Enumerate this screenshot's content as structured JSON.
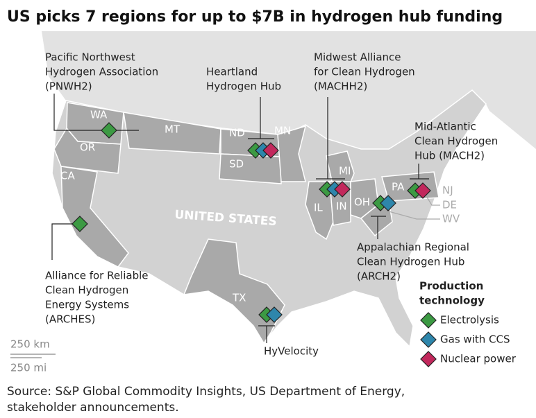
{
  "title": "US picks 7 regions for up to $7B in hydrogen hub funding",
  "country_label": "UNITED STATES",
  "state_labels": [
    "WA",
    "OR",
    "CA",
    "MT",
    "ND",
    "SD",
    "MN",
    "MI",
    "IL",
    "IN",
    "OH",
    "PA",
    "TX",
    "NJ",
    "DE",
    "WV"
  ],
  "hubs": [
    {
      "label": [
        "Pacific Northwest",
        "Hydrogen Association",
        "(PNWH2)"
      ],
      "colors": [
        "#3c9a43"
      ]
    },
    {
      "label": [
        "Heartland",
        "Hydrogen Hub"
      ],
      "colors": [
        "#3c9a43",
        "#2e86ab",
        "#c2285c"
      ]
    },
    {
      "label": [
        "Midwest Alliance",
        "for Clean Hydrogen",
        "(MACHH2)"
      ],
      "colors": [
        "#3c9a43",
        "#2e86ab",
        "#c2285c"
      ]
    },
    {
      "label": [
        "Mid-Atlantic",
        "Clean Hydrogen",
        "Hub (MACH2)"
      ],
      "colors": [
        "#3c9a43",
        "#c2285c"
      ]
    },
    {
      "label": [
        "Appalachian Regional",
        "Clean Hydrogen Hub",
        "(ARCH2)"
      ],
      "colors": [
        "#3c9a43",
        "#2e86ab"
      ]
    },
    {
      "label": [
        "Alliance for Reliable",
        "Clean Hydrogen",
        "Energy Systems",
        "(ARCHES)"
      ],
      "colors": [
        "#3c9a43"
      ]
    },
    {
      "label": [
        "HyVelocity"
      ],
      "colors": [
        "#3c9a43",
        "#2e86ab"
      ]
    }
  ],
  "legend": {
    "title": [
      "Production",
      "technology"
    ],
    "items": [
      {
        "label": "Electrolysis",
        "color": "#3c9a43"
      },
      {
        "label": "Gas with CCS",
        "color": "#2e86ab"
      },
      {
        "label": "Nuclear power",
        "color": "#c2285c"
      }
    ]
  },
  "scale": {
    "km": "250 km",
    "mi": "250 mi"
  },
  "source": [
    "Source: S&P Global Commodity Insights, US Department of Energy,",
    "stakeholder announcements."
  ]
}
